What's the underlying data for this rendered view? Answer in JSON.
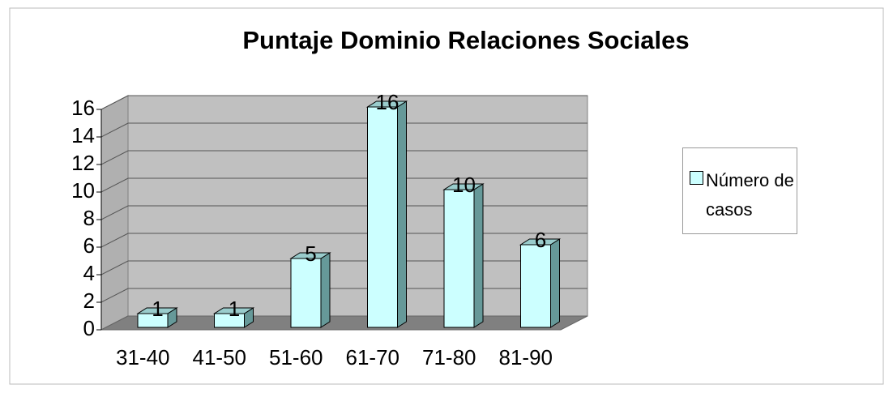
{
  "chart_data": {
    "type": "bar",
    "title": "Puntaje Dominio Relaciones Sociales",
    "categories": [
      "31-40",
      "41-50",
      "51-60",
      "61-70",
      "71-80",
      "81-90"
    ],
    "series": [
      {
        "name": "Número de casos",
        "color": "#ccffff",
        "values": [
          1,
          1,
          5,
          16,
          10,
          6
        ]
      }
    ],
    "ylim": [
      0,
      16
    ],
    "yticks": [
      0,
      2,
      4,
      6,
      8,
      10,
      12,
      14,
      16
    ],
    "grid": true,
    "legend": "right"
  }
}
